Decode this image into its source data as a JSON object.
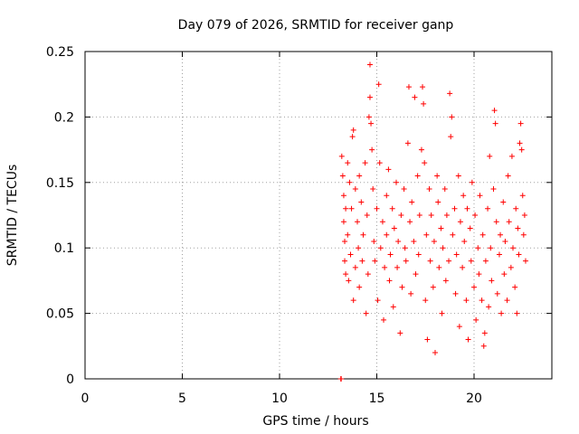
{
  "chart_data": {
    "type": "scatter",
    "title": "Day 079 of 2026, SRMTID for receiver ganp",
    "xlabel": "GPS time / hours",
    "ylabel": "SRMTID / TECUs",
    "xlim": [
      0,
      24
    ],
    "ylim": [
      0,
      0.25
    ],
    "x_ticks": [
      0,
      5,
      10,
      15,
      20
    ],
    "x_tick_labels": [
      "0",
      "5",
      "10",
      "15",
      "20"
    ],
    "y_ticks": [
      0,
      0.05,
      0.1,
      0.15,
      0.2,
      0.25
    ],
    "y_tick_labels": [
      "0",
      "0.05",
      "0.1",
      "0.15",
      "0.2",
      "0.25"
    ],
    "grid": true,
    "marker": "plus",
    "series": [
      {
        "name": "SRMTID",
        "color": "#ff0000",
        "points": [
          [
            13.15,
            0.0
          ],
          [
            13.17,
            0.0
          ],
          [
            13.2,
            0.17
          ],
          [
            13.25,
            0.155
          ],
          [
            13.3,
            0.14
          ],
          [
            13.3,
            0.12
          ],
          [
            13.35,
            0.105
          ],
          [
            13.35,
            0.09
          ],
          [
            13.4,
            0.13
          ],
          [
            13.4,
            0.08
          ],
          [
            13.5,
            0.165
          ],
          [
            13.5,
            0.11
          ],
          [
            13.55,
            0.075
          ],
          [
            13.6,
            0.15
          ],
          [
            13.65,
            0.095
          ],
          [
            13.7,
            0.13
          ],
          [
            13.75,
            0.185
          ],
          [
            13.8,
            0.19
          ],
          [
            13.8,
            0.06
          ],
          [
            13.9,
            0.145
          ],
          [
            13.9,
            0.085
          ],
          [
            14.0,
            0.12
          ],
          [
            14.05,
            0.1
          ],
          [
            14.1,
            0.155
          ],
          [
            14.1,
            0.07
          ],
          [
            14.2,
            0.135
          ],
          [
            14.25,
            0.09
          ],
          [
            14.3,
            0.11
          ],
          [
            14.4,
            0.165
          ],
          [
            14.45,
            0.05
          ],
          [
            14.5,
            0.125
          ],
          [
            14.55,
            0.08
          ],
          [
            14.6,
            0.2
          ],
          [
            14.65,
            0.24
          ],
          [
            14.65,
            0.215
          ],
          [
            14.7,
            0.195
          ],
          [
            14.75,
            0.175
          ],
          [
            14.8,
            0.145
          ],
          [
            14.85,
            0.105
          ],
          [
            14.9,
            0.09
          ],
          [
            15.0,
            0.13
          ],
          [
            15.05,
            0.06
          ],
          [
            15.1,
            0.225
          ],
          [
            15.15,
            0.165
          ],
          [
            15.2,
            0.1
          ],
          [
            15.3,
            0.12
          ],
          [
            15.35,
            0.045
          ],
          [
            15.4,
            0.085
          ],
          [
            15.5,
            0.14
          ],
          [
            15.5,
            0.11
          ],
          [
            15.6,
            0.16
          ],
          [
            15.65,
            0.075
          ],
          [
            15.7,
            0.095
          ],
          [
            15.8,
            0.13
          ],
          [
            15.85,
            0.055
          ],
          [
            15.9,
            0.115
          ],
          [
            16.0,
            0.15
          ],
          [
            16.05,
            0.085
          ],
          [
            16.1,
            0.105
          ],
          [
            16.2,
            0.035
          ],
          [
            16.25,
            0.125
          ],
          [
            16.3,
            0.07
          ],
          [
            16.4,
            0.145
          ],
          [
            16.45,
            0.1
          ],
          [
            16.5,
            0.09
          ],
          [
            16.6,
            0.18
          ],
          [
            16.65,
            0.223
          ],
          [
            16.7,
            0.12
          ],
          [
            16.75,
            0.065
          ],
          [
            16.8,
            0.135
          ],
          [
            16.9,
            0.105
          ],
          [
            16.95,
            0.215
          ],
          [
            17.0,
            0.08
          ],
          [
            17.1,
            0.155
          ],
          [
            17.15,
            0.095
          ],
          [
            17.2,
            0.125
          ],
          [
            17.3,
            0.175
          ],
          [
            17.35,
            0.223
          ],
          [
            17.4,
            0.21
          ],
          [
            17.45,
            0.165
          ],
          [
            17.5,
            0.06
          ],
          [
            17.55,
            0.11
          ],
          [
            17.6,
            0.03
          ],
          [
            17.7,
            0.145
          ],
          [
            17.75,
            0.09
          ],
          [
            17.8,
            0.125
          ],
          [
            17.9,
            0.07
          ],
          [
            17.95,
            0.105
          ],
          [
            18.0,
            0.02
          ],
          [
            18.1,
            0.155
          ],
          [
            18.15,
            0.135
          ],
          [
            18.2,
            0.085
          ],
          [
            18.3,
            0.115
          ],
          [
            18.35,
            0.05
          ],
          [
            18.4,
            0.1
          ],
          [
            18.5,
            0.145
          ],
          [
            18.55,
            0.075
          ],
          [
            18.6,
            0.125
          ],
          [
            18.7,
            0.09
          ],
          [
            18.75,
            0.218
          ],
          [
            18.8,
            0.185
          ],
          [
            18.85,
            0.2
          ],
          [
            18.9,
            0.11
          ],
          [
            19.0,
            0.13
          ],
          [
            19.05,
            0.065
          ],
          [
            19.1,
            0.095
          ],
          [
            19.2,
            0.155
          ],
          [
            19.25,
            0.04
          ],
          [
            19.3,
            0.12
          ],
          [
            19.4,
            0.085
          ],
          [
            19.45,
            0.14
          ],
          [
            19.5,
            0.105
          ],
          [
            19.6,
            0.06
          ],
          [
            19.65,
            0.13
          ],
          [
            19.7,
            0.03
          ],
          [
            19.8,
            0.115
          ],
          [
            19.85,
            0.09
          ],
          [
            19.9,
            0.15
          ],
          [
            20.0,
            0.07
          ],
          [
            20.05,
            0.125
          ],
          [
            20.1,
            0.045
          ],
          [
            20.2,
            0.1
          ],
          [
            20.25,
            0.08
          ],
          [
            20.3,
            0.14
          ],
          [
            20.4,
            0.06
          ],
          [
            20.45,
            0.11
          ],
          [
            20.5,
            0.025
          ],
          [
            20.55,
            0.035
          ],
          [
            20.6,
            0.09
          ],
          [
            20.7,
            0.13
          ],
          [
            20.75,
            0.055
          ],
          [
            20.8,
            0.17
          ],
          [
            20.85,
            0.1
          ],
          [
            20.9,
            0.075
          ],
          [
            21.0,
            0.145
          ],
          [
            21.05,
            0.205
          ],
          [
            21.1,
            0.195
          ],
          [
            21.15,
            0.12
          ],
          [
            21.2,
            0.065
          ],
          [
            21.3,
            0.095
          ],
          [
            21.35,
            0.11
          ],
          [
            21.4,
            0.05
          ],
          [
            21.5,
            0.135
          ],
          [
            21.55,
            0.08
          ],
          [
            21.6,
            0.105
          ],
          [
            21.7,
            0.06
          ],
          [
            21.75,
            0.155
          ],
          [
            21.8,
            0.12
          ],
          [
            21.9,
            0.085
          ],
          [
            21.95,
            0.17
          ],
          [
            22.0,
            0.1
          ],
          [
            22.1,
            0.07
          ],
          [
            22.15,
            0.13
          ],
          [
            22.2,
            0.05
          ],
          [
            22.25,
            0.115
          ],
          [
            22.3,
            0.095
          ],
          [
            22.35,
            0.18
          ],
          [
            22.4,
            0.195
          ],
          [
            22.45,
            0.175
          ],
          [
            22.5,
            0.14
          ],
          [
            22.55,
            0.11
          ],
          [
            22.6,
            0.125
          ],
          [
            22.65,
            0.09
          ]
        ]
      }
    ]
  }
}
